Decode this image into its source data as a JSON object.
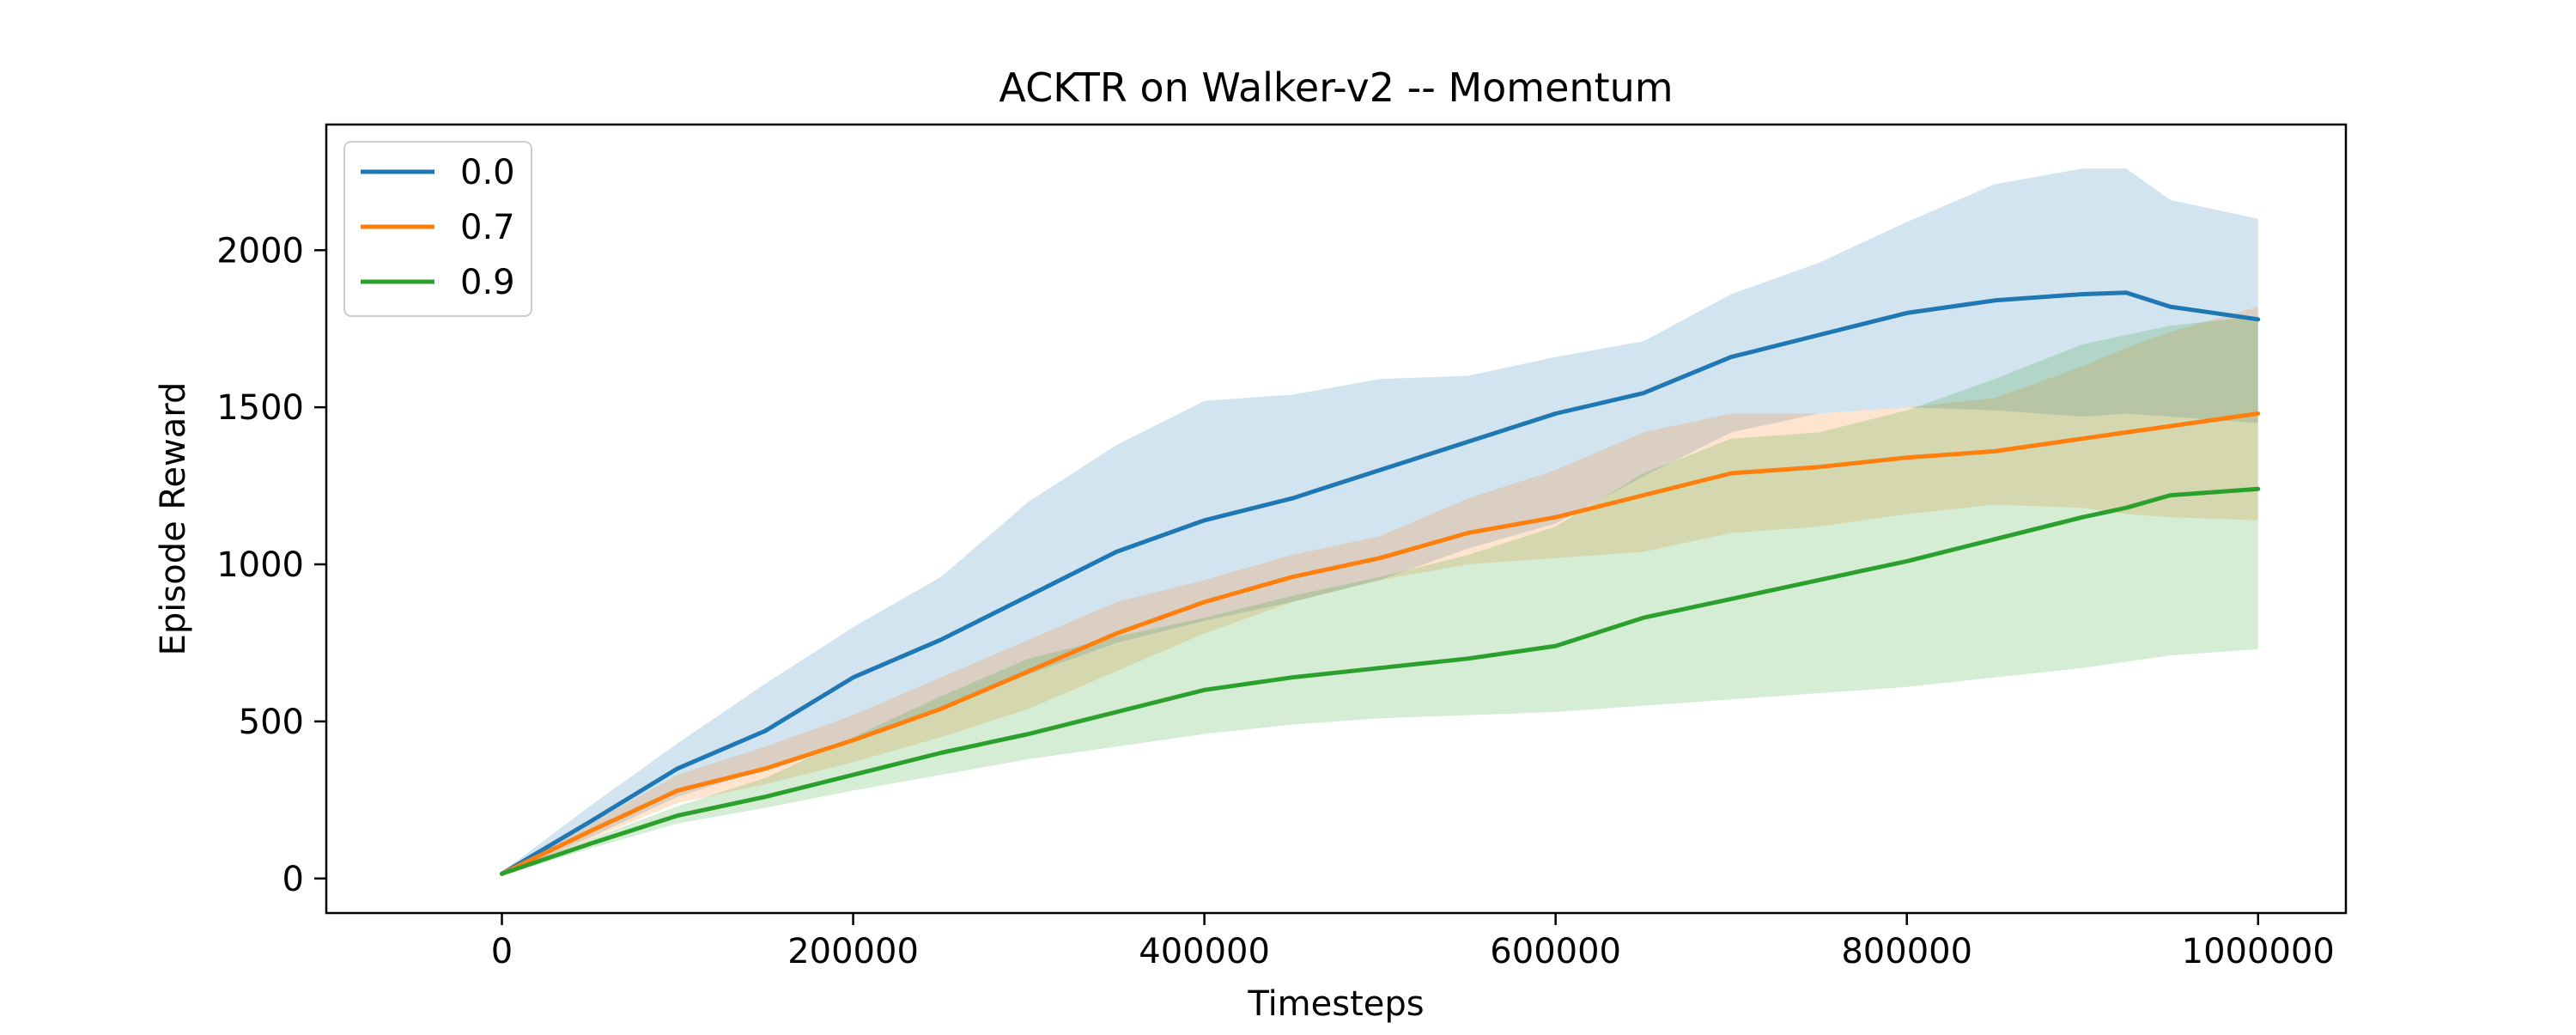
{
  "chart_data": {
    "type": "line",
    "title": "ACKTR on Walker-v2 -- Momentum",
    "xlabel": "Timesteps",
    "ylabel": "Episode Reward",
    "xlim": [
      -100000,
      1050000
    ],
    "ylim": [
      -110,
      2400
    ],
    "xticks": [
      0,
      200000,
      400000,
      600000,
      800000,
      1000000
    ],
    "xtick_labels": [
      "0",
      "200000",
      "400000",
      "600000",
      "800000",
      "1000000"
    ],
    "yticks": [
      0,
      500,
      1000,
      1500,
      2000
    ],
    "ytick_labels": [
      "0",
      "500",
      "1000",
      "1500",
      "2000"
    ],
    "grid": false,
    "legend_position": "top-left",
    "x": [
      0,
      50000,
      100000,
      150000,
      200000,
      250000,
      300000,
      350000,
      400000,
      450000,
      500000,
      550000,
      600000,
      650000,
      700000,
      750000,
      800000,
      850000,
      900000,
      925000,
      950000,
      1000000
    ],
    "series": [
      {
        "name": "0.0",
        "color": "#1f77b4",
        "fill_alpha": 0.2,
        "values": [
          15,
          180,
          350,
          470,
          640,
          760,
          900,
          1040,
          1140,
          1210,
          1300,
          1390,
          1480,
          1545,
          1660,
          1730,
          1800,
          1840,
          1860,
          1865,
          1820,
          1780
        ],
        "upper": [
          20,
          230,
          430,
          620,
          800,
          960,
          1200,
          1380,
          1520,
          1540,
          1590,
          1600,
          1660,
          1710,
          1860,
          1960,
          2090,
          2210,
          2260,
          2260,
          2160,
          2100
        ],
        "lower": [
          10,
          130,
          260,
          350,
          440,
          540,
          650,
          750,
          820,
          880,
          950,
          1050,
          1130,
          1280,
          1420,
          1480,
          1500,
          1490,
          1470,
          1480,
          1470,
          1450
        ]
      },
      {
        "name": "0.7",
        "color": "#ff7f0e",
        "fill_alpha": 0.2,
        "values": [
          15,
          150,
          280,
          350,
          440,
          540,
          660,
          780,
          880,
          960,
          1020,
          1100,
          1150,
          1220,
          1290,
          1310,
          1340,
          1360,
          1400,
          1420,
          1440,
          1480
        ],
        "upper": [
          20,
          175,
          330,
          420,
          520,
          640,
          760,
          880,
          950,
          1030,
          1090,
          1210,
          1300,
          1420,
          1480,
          1480,
          1500,
          1530,
          1630,
          1690,
          1740,
          1820
        ],
        "lower": [
          10,
          125,
          240,
          300,
          370,
          450,
          540,
          660,
          780,
          880,
          950,
          1000,
          1020,
          1040,
          1100,
          1120,
          1160,
          1190,
          1180,
          1160,
          1150,
          1140
        ]
      },
      {
        "name": "0.9",
        "color": "#2ca02c",
        "fill_alpha": 0.2,
        "values": [
          15,
          110,
          200,
          260,
          330,
          400,
          460,
          530,
          600,
          640,
          670,
          700,
          740,
          830,
          890,
          950,
          1010,
          1080,
          1150,
          1180,
          1220,
          1240
        ],
        "upper": [
          20,
          125,
          230,
          320,
          450,
          580,
          700,
          770,
          830,
          900,
          960,
          1030,
          1120,
          1290,
          1400,
          1420,
          1490,
          1590,
          1700,
          1730,
          1760,
          1790
        ],
        "lower": [
          10,
          95,
          175,
          225,
          280,
          330,
          380,
          420,
          460,
          490,
          510,
          520,
          530,
          550,
          570,
          590,
          610,
          640,
          670,
          690,
          710,
          730
        ]
      }
    ]
  }
}
